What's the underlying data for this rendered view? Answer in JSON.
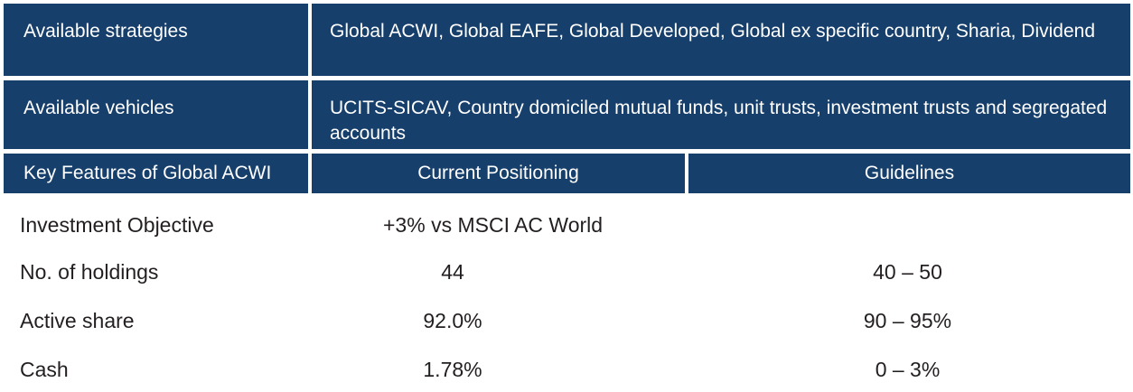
{
  "header_rows": [
    {
      "label": "Available strategies",
      "value": "Global ACWI, Global EAFE, Global Developed, Global ex specific country, Sharia, Dividend"
    },
    {
      "label": "Available vehicles",
      "value": "UCITS-SICAV, Country domiciled mutual funds, unit trusts, investment trusts and segregated accounts"
    }
  ],
  "table": {
    "columns": [
      "Key Features of Global ACWI",
      "Current Positioning",
      "Guidelines"
    ],
    "rows": [
      {
        "feature": "Investment Objective",
        "current": "+3% vs MSCI AC World",
        "guideline": ""
      },
      {
        "feature": "No. of holdings",
        "current": "44",
        "guideline": "40 – 50"
      },
      {
        "feature": "Active share",
        "current": "92.0%",
        "guideline": "90 – 95%"
      },
      {
        "feature": "Cash",
        "current": "1.78%",
        "guideline": "0 – 3%"
      }
    ]
  },
  "colors": {
    "header_bg": "#173f6b",
    "header_text": "#ffffff",
    "body_text": "#231f20"
  }
}
